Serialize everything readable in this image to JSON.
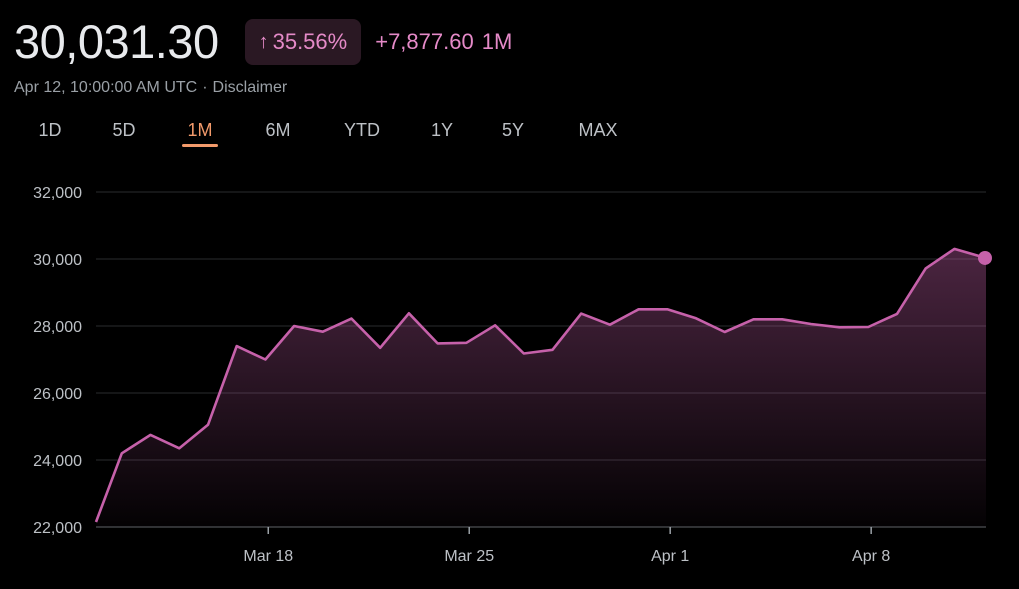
{
  "header": {
    "price": "30,031.30",
    "change_arrow_icon": "arrow-up-icon",
    "change_percent": "35.56%",
    "change_absolute": "+7,877.60",
    "change_period": "1M",
    "timestamp": "Apr 12, 10:00:00 AM UTC",
    "separator": "·",
    "disclaimer": "Disclaimer"
  },
  "tabs": [
    {
      "label": "1D",
      "active": false
    },
    {
      "label": "5D",
      "active": false
    },
    {
      "label": "1M",
      "active": true
    },
    {
      "label": "6M",
      "active": false
    },
    {
      "label": "YTD",
      "active": false
    },
    {
      "label": "1Y",
      "active": false
    },
    {
      "label": "5Y",
      "active": false
    },
    {
      "label": "MAX",
      "active": false
    }
  ],
  "colors": {
    "line": "#c661aa",
    "accent_tab": "#f29a6b",
    "change": "#e58ac8",
    "background": "#000000"
  },
  "chart_data": {
    "type": "area",
    "x_start": "Mar 12",
    "x_end": "Apr 12",
    "ylim": [
      22000,
      32000
    ],
    "y_ticks": [
      "32,000",
      "30,000",
      "28,000",
      "26,000",
      "24,000",
      "22,000"
    ],
    "y_tick_values": [
      32000,
      30000,
      28000,
      26000,
      24000,
      22000
    ],
    "x_ticks": [
      "Mar 18",
      "Mar 25",
      "Apr 1",
      "Apr 8"
    ],
    "x_tick_days": [
      6,
      13,
      20,
      27
    ],
    "grid": true,
    "series": [
      {
        "x": [
          0,
          0.9,
          1.9,
          2.9,
          3.9,
          4.9,
          5.9,
          6.9,
          7.9,
          8.9,
          9.9,
          10.9,
          11.9,
          12.9,
          13.9,
          14.9,
          15.9,
          16.9,
          17.9,
          18.9,
          19.9,
          20.9,
          21.9,
          22.9,
          23.9,
          24.9,
          25.9,
          26.9,
          27.9,
          28.9,
          29.9,
          31.0
        ],
        "values": [
          22150,
          24200,
          24750,
          24350,
          25050,
          27400,
          27000,
          28000,
          27830,
          28220,
          27350,
          28380,
          27480,
          27500,
          28020,
          27180,
          27290,
          28370,
          28040,
          28500,
          28500,
          28230,
          27820,
          28200,
          28200,
          28060,
          27960,
          27970,
          28360,
          29720,
          30300,
          30031
        ]
      }
    ]
  }
}
